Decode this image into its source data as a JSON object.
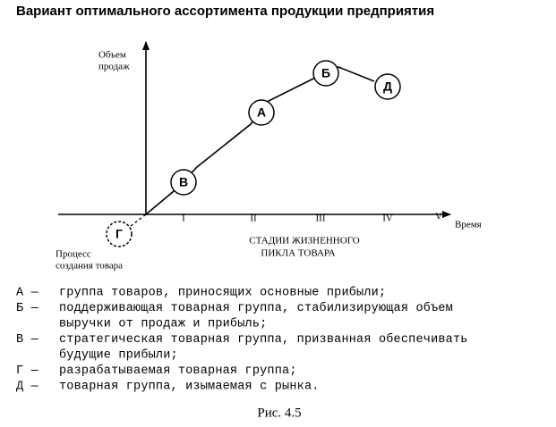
{
  "header": {
    "title": "Вариант оптимального ассортимента продукции предприятия"
  },
  "axes": {
    "y_label": [
      "Объем",
      "продаж"
    ],
    "x_label": "Время",
    "stages": [
      "I",
      "II",
      "III",
      "IV",
      "V"
    ],
    "stages_title": [
      "СТАДИИ ЖИЗНЕННОГО",
      "ПИКЛА ТОВАРА"
    ],
    "pre_stage": [
      "Процесс",
      "создания товара"
    ]
  },
  "nodes": [
    {
      "label": "Г"
    },
    {
      "label": "В"
    },
    {
      "label": "А"
    },
    {
      "label": "Б"
    },
    {
      "label": "Д"
    }
  ],
  "legend": [
    {
      "letter": "А —",
      "lines": [
        "группа товаров, приносящих основные прибыли;"
      ]
    },
    {
      "letter": "Б —",
      "lines": [
        "поддерживающая товарная группа, стабилизирующая объем",
        "выручки от продаж  и прибыль;"
      ]
    },
    {
      "letter": "В —",
      "lines": [
        "стратегическая товарная группа, призванная обеспечивать",
        "будущие прибыли;"
      ]
    },
    {
      "letter": "Г —",
      "lines": [
        "разрабатываемая товарная группа;"
      ]
    },
    {
      "letter": "Д —",
      "lines": [
        "товарная группа, изымаемая с рынка."
      ]
    }
  ],
  "caption": "Рис. 4.5"
}
